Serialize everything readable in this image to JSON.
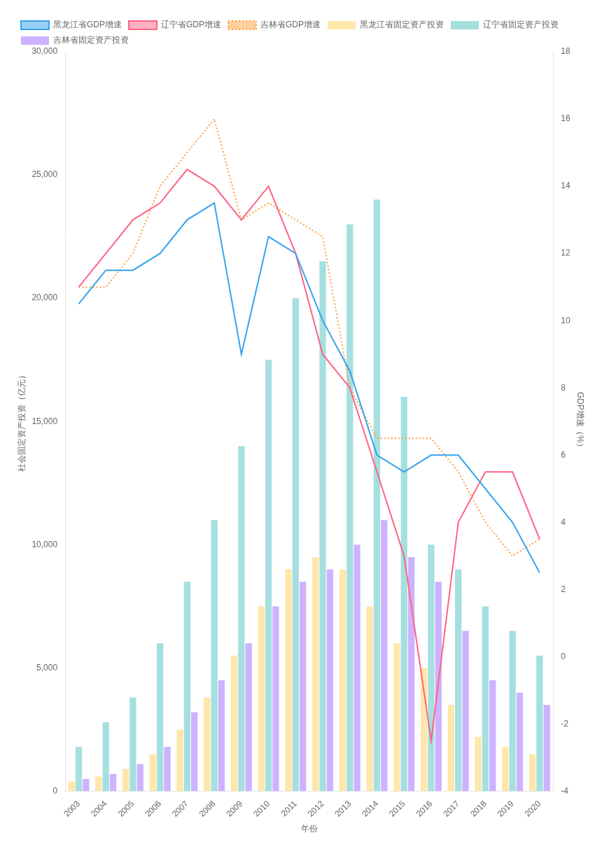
{
  "chart_data": {
    "type": "bar",
    "categories": [
      2003,
      2004,
      2005,
      2006,
      2007,
      2008,
      2009,
      2010,
      2011,
      2012,
      2013,
      2014,
      2015,
      2016,
      2017,
      2018,
      2019,
      2020
    ],
    "series": [
      {
        "name": "黑龙江省GDP增速",
        "type": "line",
        "axis": "y2",
        "line_style": "solid",
        "marker": "none",
        "values": [
          10.5,
          11.5,
          11.5,
          12,
          13,
          13.5,
          9,
          12.5,
          12,
          10,
          8.5,
          6,
          5.5,
          6,
          6,
          5,
          4,
          2.5
        ]
      },
      {
        "name": "辽宁省GDP增速",
        "type": "line",
        "axis": "y2",
        "line_style": "solid",
        "marker": "none",
        "values": [
          11,
          12,
          13,
          13.5,
          14.5,
          14,
          13,
          14,
          12,
          9,
          8,
          5.5,
          3,
          -2.5,
          4,
          5.5,
          5.5,
          3.5
        ]
      },
      {
        "name": "吉林省GDP增速",
        "type": "line",
        "axis": "y2",
        "line_style": "dotted",
        "marker": "none",
        "values": [
          11,
          11,
          12,
          14,
          15,
          16,
          13,
          13.5,
          13,
          12.5,
          8,
          6.5,
          6.5,
          6.5,
          5.5,
          4,
          3,
          3.5
        ]
      },
      {
        "name": "黑龙江省固定资产投资",
        "type": "bar",
        "values": [
          400,
          600,
          900,
          1500,
          2500,
          3800,
          5500,
          7500,
          9000,
          9500,
          9000,
          7500,
          6000,
          5000,
          3500,
          2200,
          1800,
          1500
        ]
      },
      {
        "name": "辽宁省固定资产投资",
        "type": "bar",
        "values": [
          1800,
          2800,
          3800,
          6000,
          8500,
          11000,
          14000,
          17500,
          20000,
          21500,
          23000,
          24000,
          16000,
          10000,
          9000,
          7500,
          6500,
          5500
        ]
      },
      {
        "name": "吉林省固定资产投资",
        "type": "bar",
        "values": [
          500,
          700,
          1100,
          1800,
          3200,
          4500,
          6000,
          7500,
          8500,
          9000,
          10000,
          11000,
          9500,
          8500,
          6500,
          4500,
          4000,
          3500
        ]
      }
    ],
    "xlabel": "年份",
    "ylabel": "社会固定资产投资（亿元）",
    "y2label": "GDP增速（%）",
    "ylim": [
      0,
      30000
    ],
    "yticks": [
      0,
      5000,
      10000,
      15000,
      20000,
      25000,
      30000
    ],
    "y2lim": [
      -4,
      18
    ],
    "y2ticks": [
      -4,
      -2,
      0,
      2,
      4,
      6,
      8,
      10,
      12,
      14,
      16,
      18
    ],
    "grid": false,
    "legend": "upper left"
  }
}
